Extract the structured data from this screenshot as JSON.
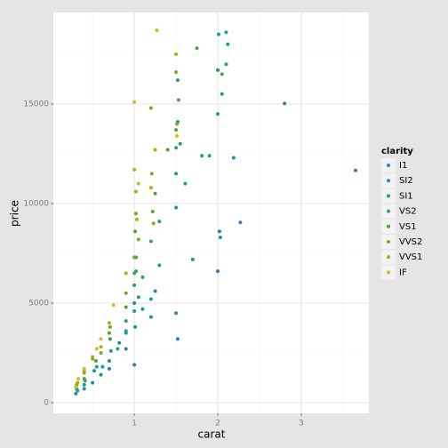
{
  "chart_data": {
    "type": "scatter",
    "x_label": "carat",
    "y_label": "price",
    "legend_title": "clarity",
    "xlim": [
      0.03,
      3.81
    ],
    "ylim": [
      -536,
      19598
    ],
    "xticks": [
      1,
      2,
      3
    ],
    "yticks": [
      0,
      5000,
      10000,
      15000
    ],
    "xminor": [
      0.5,
      1.5,
      2.5,
      3.5
    ],
    "yminor": [
      2500,
      7500,
      12500,
      17500
    ],
    "grid": true,
    "legend": "right",
    "series": [
      {
        "name": "I1",
        "color": "#2c7fb8",
        "x": [
          2.8,
          3.65,
          2.27,
          2.0,
          1.5,
          1.0,
          0.9,
          2.02,
          1.52,
          0.7
        ],
        "values": [
          15030,
          11670,
          9050,
          6600,
          4500,
          1900,
          2700,
          8600,
          3200,
          1700
        ]
      },
      {
        "name": "SI2",
        "color": "#1b91a8",
        "x": [
          2.0,
          2.12,
          2.05,
          1.52,
          1.5,
          1.0,
          1.01,
          1.2,
          0.9,
          0.7,
          0.5,
          0.4,
          0.3,
          2.19,
          1.7,
          2.03,
          1.25,
          1.1,
          0.82,
          0.6
        ],
        "values": [
          16700,
          18000,
          15500,
          14100,
          9800,
          5000,
          3800,
          4300,
          3500,
          2100,
          1000,
          700,
          450,
          12300,
          7200,
          8300,
          5600,
          4700,
          3000,
          1400
        ]
      },
      {
        "name": "SI1",
        "color": "#17a08e",
        "x": [
          2.01,
          2.1,
          1.55,
          1.5,
          1.02,
          1.0,
          1.3,
          1.2,
          0.9,
          0.72,
          0.52,
          0.4,
          0.32,
          2.0,
          1.81,
          1.05,
          0.8,
          0.62
        ],
        "values": [
          18500,
          18600,
          13000,
          11500,
          6600,
          4600,
          6900,
          5200,
          3600,
          2600,
          1600,
          900,
          600,
          14500,
          12400,
          5300,
          2700,
          1800
        ]
      },
      {
        "name": "VS2",
        "color": "#2aa462",
        "x": [
          2.1,
          1.9,
          1.52,
          1.5,
          1.02,
          1.0,
          1.2,
          1.3,
          0.9,
          0.71,
          0.55,
          0.41,
          0.31,
          1.61,
          1.1
        ],
        "values": [
          17000,
          12400,
          16200,
          12800,
          7300,
          5900,
          8100,
          9100,
          4100,
          3200,
          1800,
          1100,
          700,
          11000,
          6300
        ]
      },
      {
        "name": "VS1",
        "color": "#4ea43a",
        "x": [
          1.75,
          2.05,
          1.53,
          1.5,
          1.01,
          1.0,
          1.22,
          1.25,
          0.9,
          0.7,
          0.54,
          0.4,
          0.3,
          1.4
        ],
        "values": [
          17800,
          16500,
          15200,
          13700,
          8600,
          6500,
          9600,
          10500,
          4800,
          3500,
          2100,
          1200,
          800,
          12700
        ]
      },
      {
        "name": "VVS2",
        "color": "#7ea621",
        "x": [
          1.5,
          1.51,
          1.02,
          1.0,
          1.21,
          1.2,
          1.23,
          0.9,
          0.71,
          0.6,
          0.5,
          0.4,
          0.31,
          1.05
        ],
        "values": [
          16600,
          14000,
          9500,
          7300,
          11500,
          14800,
          9000,
          5500,
          3800,
          2500,
          2200,
          1500,
          900,
          8200
        ]
      },
      {
        "name": "VVS1",
        "color": "#aab012",
        "x": [
          1.5,
          1.0,
          1.02,
          1.2,
          1.25,
          1.03,
          0.9,
          0.7,
          0.6,
          0.5,
          0.4,
          0.32
        ],
        "values": [
          17500,
          11700,
          10600,
          10800,
          12700,
          9200,
          6500,
          4000,
          2800,
          2300,
          1600,
          1000
        ]
      },
      {
        "name": "IF",
        "color": "#d9b824",
        "x": [
          1.27,
          1.0,
          1.51,
          1.05,
          0.75,
          0.6,
          0.55,
          0.4,
          0.33,
          0.3
        ],
        "values": [
          18700,
          15100,
          13400,
          11000,
          4900,
          3200,
          2700,
          1700,
          1200,
          800
        ]
      }
    ]
  }
}
